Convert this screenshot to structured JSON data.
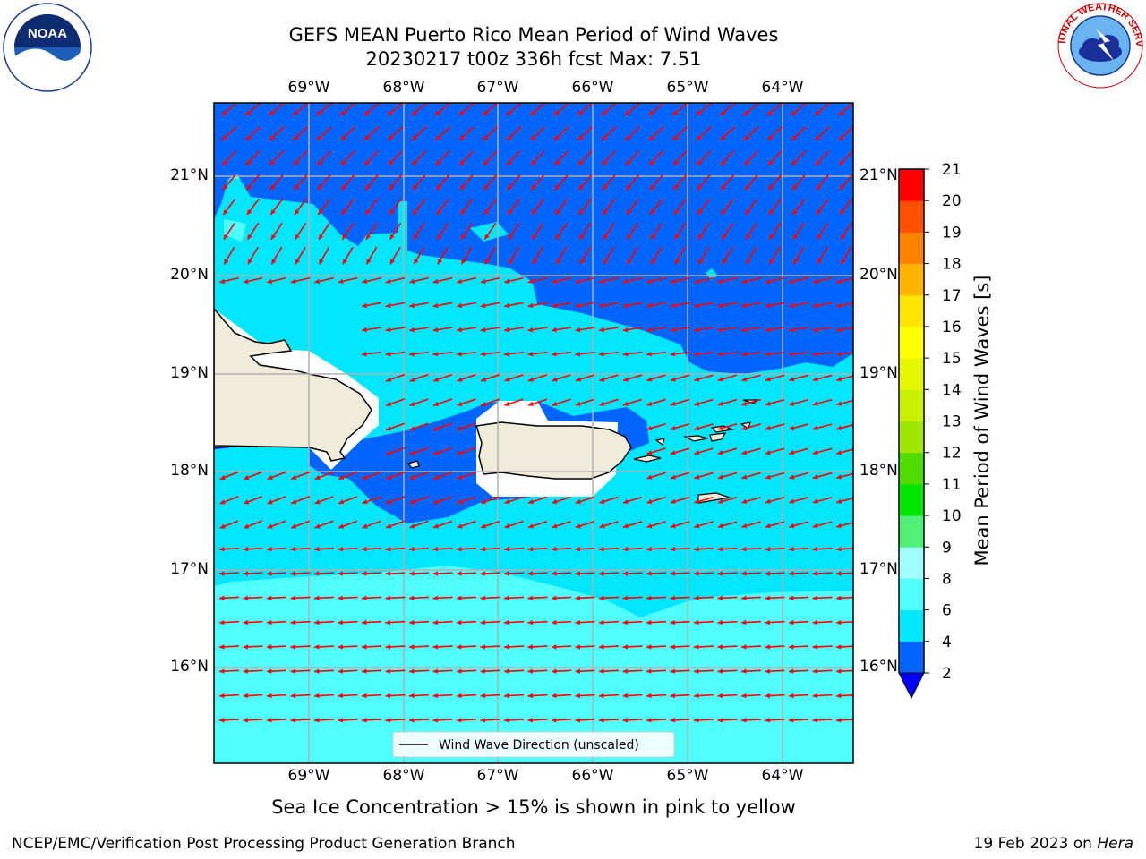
{
  "header": {
    "title_line1": "GEFS MEAN Puerto Rico Mean Period of Wind Waves",
    "title_line2": "20230217 t00z 336h fcst   Max: 7.51"
  },
  "logos": {
    "left": {
      "name": "NOAA",
      "text": "NOAA",
      "ring_text": "NATIONAL OCEANIC AND ATMOSPHERIC ADMINISTRATION · U.S. DEPARTMENT OF COMMERCE"
    },
    "right": {
      "name": "National Weather Service",
      "ring_text": "NATIONAL WEATHER SERVICE"
    }
  },
  "map": {
    "lon_ticks": [
      "69°W",
      "68°W",
      "67°W",
      "66°W",
      "65°W",
      "64°W"
    ],
    "lat_ticks": [
      "21°N",
      "20°N",
      "19°N",
      "18°N",
      "17°N",
      "16°N"
    ],
    "legend_label": "Wind Wave Direction (unscaled)",
    "arrow_color": "#ff0000",
    "land_color": "#efecda"
  },
  "colorbar": {
    "label": "Mean Period of Wind Waves [s]",
    "ticks": [
      "2",
      "4",
      "6",
      "8",
      "9",
      "10",
      "11",
      "12",
      "13",
      "14",
      "15",
      "16",
      "17",
      "18",
      "19",
      "20",
      "21"
    ],
    "colors": [
      "#0064ff",
      "#00e6ff",
      "#50ffff",
      "#a0ffff",
      "#50f078",
      "#00e600",
      "#50dc00",
      "#a0e600",
      "#c8f000",
      "#e6f500",
      "#ffff00",
      "#ffe600",
      "#ffb400",
      "#ff8200",
      "#ff5000",
      "#ff2800",
      "#ff0000"
    ],
    "under_color": "#0000ff"
  },
  "notes": {
    "sea_ice": "Sea Ice Concentration > 15% is shown in pink to yellow"
  },
  "footer": {
    "left": "NCEP/EMC/Verification Post Processing Product Generation Branch",
    "right_prefix": "19 Feb 2023 on ",
    "right_host": "Hera"
  }
}
